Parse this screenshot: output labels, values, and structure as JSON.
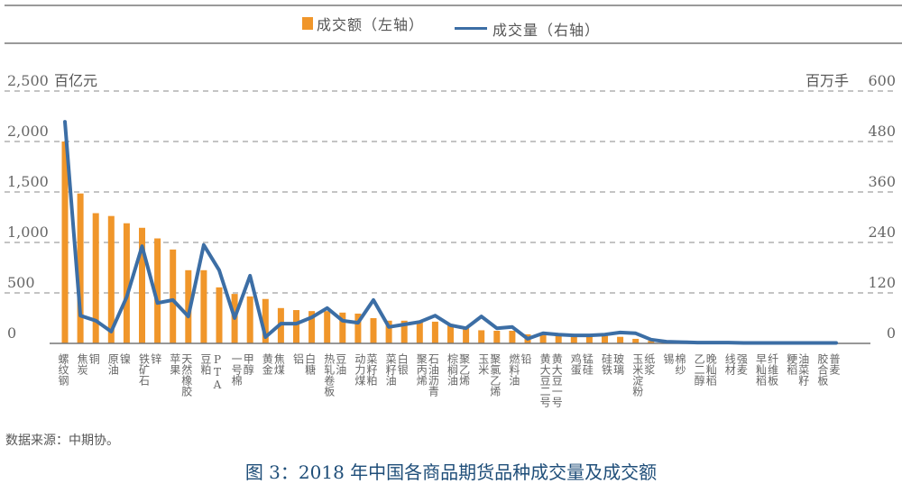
{
  "legend": {
    "bar_label": "成交额（左轴）",
    "line_label": "成交量（右轴）"
  },
  "axes": {
    "left_unit": "百亿元",
    "right_unit": "百万手",
    "left_ticks": [
      "0",
      "500",
      "1,000",
      "1,500",
      "2,000",
      "2,500"
    ],
    "right_ticks": [
      "0",
      "120",
      "240",
      "360",
      "480",
      "600"
    ]
  },
  "colors": {
    "bar": "#f0962a",
    "line": "#3c6ea5",
    "grid": "#8a8a8a",
    "caption": "#1f4e79"
  },
  "source": "数据来源：中期协。",
  "caption": "图 3：2018 年中国各商品期货品种成交量及成交额",
  "chart_data": {
    "type": "bar+line",
    "title": "2018年中国各商品期货品种成交量及成交额",
    "xlabel": "",
    "ylabel_left": "百亿元",
    "ylabel_right": "百万手",
    "ylim_left": [
      0,
      2500
    ],
    "ylim_right": [
      0,
      600
    ],
    "grid": true,
    "legend_position": "top",
    "categories": [
      "螺纹钢",
      "焦炭",
      "铜",
      "原油",
      "镍",
      "铁矿石",
      "锌",
      "苹果",
      "天然橡胶",
      "豆粕",
      "PTA",
      "一号棉",
      "甲醇",
      "黄金",
      "焦煤",
      "铝",
      "白糖",
      "热轧卷板",
      "豆油",
      "动力煤",
      "菜籽粕",
      "菜籽油",
      "白银",
      "聚丙烯",
      "石油沥青",
      "棕榈油",
      "聚乙烯",
      "玉米",
      "聚氯乙烯",
      "燃料油",
      "铅",
      "黄大豆二号",
      "黄大豆一号",
      "鸡蛋",
      "锰硅",
      "硅铁",
      "玻璃",
      "玉米淀粉",
      "纸浆",
      "锡",
      "棉纱",
      "乙二醇",
      "晚籼稻",
      "线材",
      "强麦",
      "早籼稻",
      "纤维板",
      "粳稻",
      "油菜籽",
      "胶合板",
      "普麦"
    ],
    "series": [
      {
        "name": "成交额（左轴）",
        "type": "bar",
        "axis": "left",
        "values": [
          2000,
          1485,
          1290,
          1262,
          1190,
          1145,
          1040,
          930,
          725,
          725,
          555,
          490,
          465,
          440,
          350,
          330,
          320,
          320,
          305,
          295,
          250,
          225,
          225,
          215,
          215,
          190,
          155,
          130,
          125,
          125,
          90,
          90,
          85,
          75,
          75,
          75,
          65,
          45,
          25,
          8,
          5,
          4,
          2,
          2,
          2,
          1,
          1,
          1,
          1,
          1,
          0
        ]
      },
      {
        "name": "成交量（右轴）",
        "type": "line",
        "axis": "right",
        "values": [
          527,
          66,
          54,
          28,
          110,
          231,
          96,
          103,
          64,
          234,
          174,
          60,
          161,
          15,
          47,
          47,
          62,
          84,
          54,
          49,
          103,
          39,
          45,
          51,
          66,
          43,
          36,
          64,
          36,
          39,
          11,
          24,
          21,
          19,
          19,
          21,
          26,
          24,
          9,
          4,
          3,
          2,
          2,
          2,
          1,
          1,
          1,
          1,
          1,
          1,
          1
        ]
      }
    ]
  }
}
